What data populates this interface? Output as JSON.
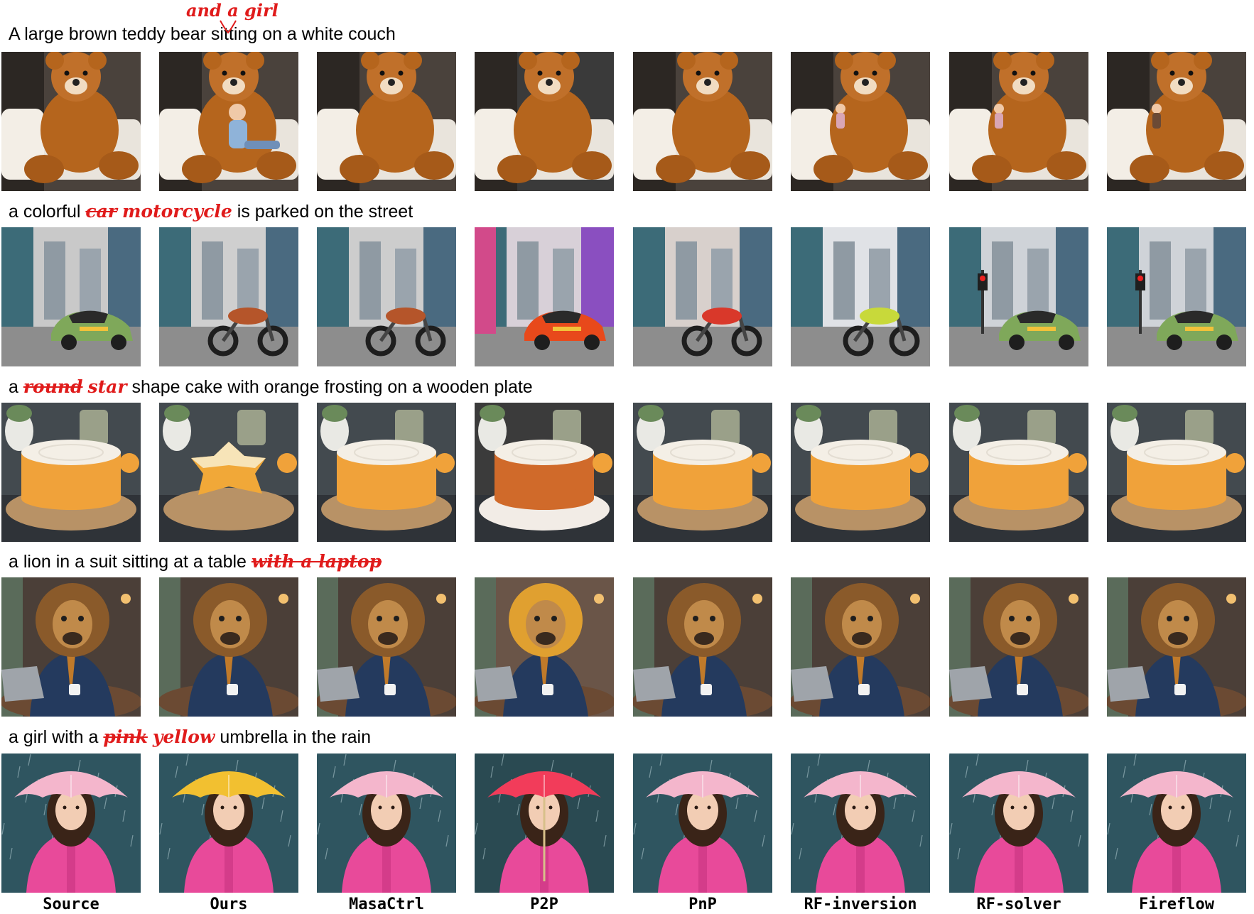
{
  "figure": {
    "columns": [
      "Source",
      "Ours",
      "MasaCtrl",
      "P2P",
      "PnP",
      "RF-inversion",
      "RF-solver",
      "Fireflow"
    ],
    "rows": [
      {
        "prefix": "A large brown teddy bear ",
        "removed": "",
        "added": "and a girl",
        "suffix": "sitting on a white couch",
        "subject": "teddy bear on couch"
      },
      {
        "prefix": "a colorful ",
        "removed": "car",
        "added": "motorcycle",
        "suffix": " is parked on the street",
        "subject": "vehicle on street"
      },
      {
        "prefix": "a ",
        "removed": "round",
        "added": "star",
        "suffix": " shape cake with orange frosting on a wooden plate",
        "subject": "cake on wooden plate"
      },
      {
        "prefix": "a lion in a suit sitting at a table ",
        "removed": "with a laptop",
        "added": "",
        "suffix": "",
        "subject": "lion in suit at table"
      },
      {
        "prefix": "a girl with a ",
        "removed": "pink",
        "added": "yellow",
        "suffix": " umbrella in the rain",
        "subject": "girl with umbrella in rain"
      }
    ]
  },
  "colors": {
    "edit_red": "#e01b1b"
  }
}
